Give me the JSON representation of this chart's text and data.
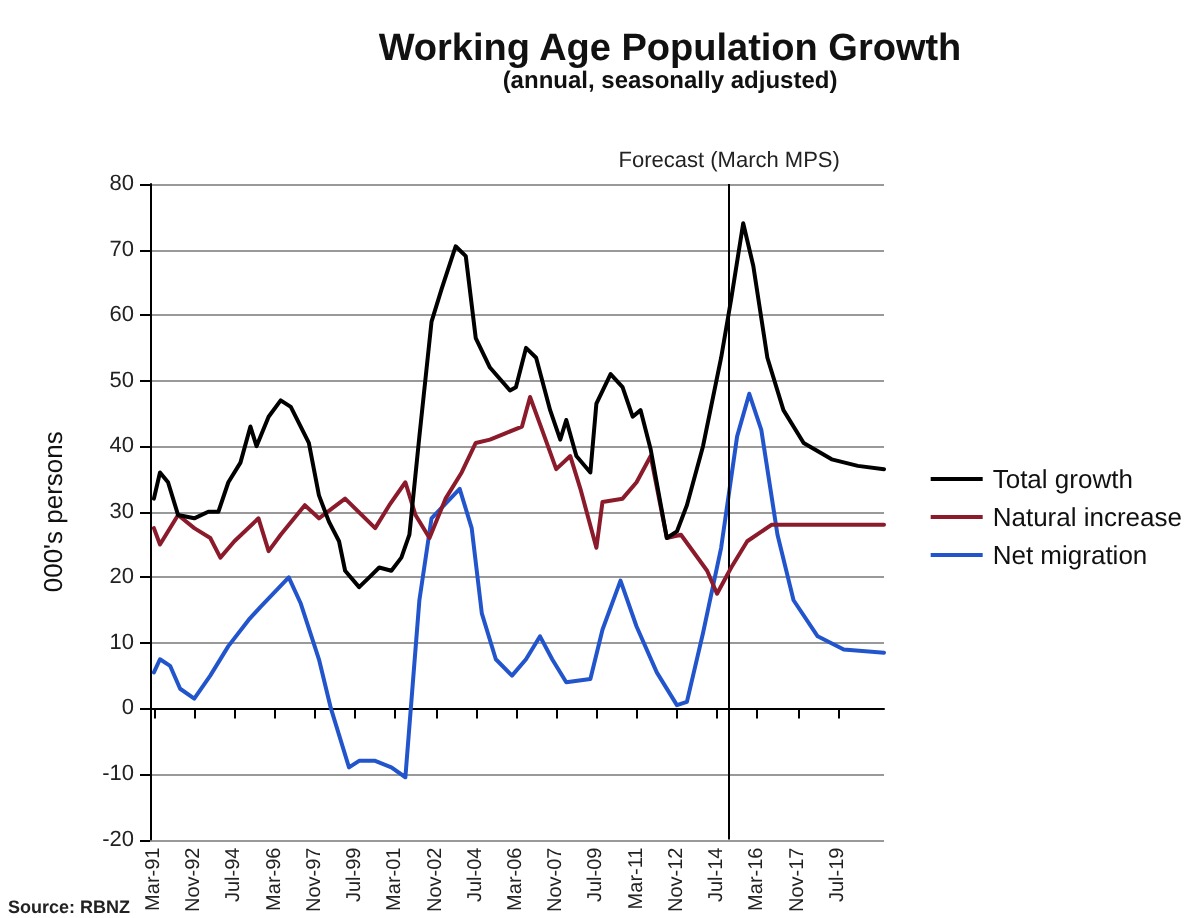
{
  "chart_data": {
    "type": "line",
    "title": "Working Age Population Growth",
    "subtitle": "(annual, seasonally adjusted)",
    "ylabel": "000's persons",
    "annotations": [
      "Source: RBNZ"
    ],
    "xlim": [
      "1991-01",
      "2021-06"
    ],
    "xticks": [
      {
        "value": "1991-03",
        "label": "Mar-91"
      },
      {
        "value": "1992-11",
        "label": "Nov-92"
      },
      {
        "value": "1994-07",
        "label": "Jul-94"
      },
      {
        "value": "1996-03",
        "label": "Mar-96"
      },
      {
        "value": "1997-11",
        "label": "Nov-97"
      },
      {
        "value": "1999-07",
        "label": "Jul-99"
      },
      {
        "value": "2001-03",
        "label": "Mar-01"
      },
      {
        "value": "2002-11",
        "label": "Nov-02"
      },
      {
        "value": "2004-07",
        "label": "Jul-04"
      },
      {
        "value": "2006-03",
        "label": "Mar-06"
      },
      {
        "value": "2007-11",
        "label": "Nov-07"
      },
      {
        "value": "2009-07",
        "label": "Jul-09"
      },
      {
        "value": "2011-03",
        "label": "Mar-11"
      },
      {
        "value": "2012-11",
        "label": "Nov-12"
      },
      {
        "value": "2014-07",
        "label": "Jul-14"
      },
      {
        "value": "2016-03",
        "label": "Mar-16"
      },
      {
        "value": "2017-11",
        "label": "Nov-17"
      },
      {
        "value": "2019-07",
        "label": "Jul-19"
      }
    ],
    "ylim": [
      -20,
      80
    ],
    "yticks": [
      -20,
      -10,
      0,
      10,
      20,
      30,
      40,
      50,
      60,
      70,
      80
    ],
    "grid": "y",
    "legend": "right",
    "marker": "none",
    "ref_lines": [
      {
        "axis": "x",
        "value": "2015-01",
        "label": "Forecast (March MPS)",
        "color": "#000000"
      }
    ],
    "series": [
      {
        "name": "Total growth",
        "color": "#000000",
        "x": [
          "1991-03",
          "1991-06",
          "1991-10",
          "1992-03",
          "1992-11",
          "1993-06",
          "1993-11",
          "1994-04",
          "1994-10",
          "1995-03",
          "1995-06",
          "1995-12",
          "1996-06",
          "1996-11",
          "1997-08",
          "1998-01",
          "1998-06",
          "1998-11",
          "1999-02",
          "1999-09",
          "2000-02",
          "2000-07",
          "2001-01",
          "2001-06",
          "2001-10",
          "2002-03",
          "2002-09",
          "2003-02",
          "2003-09",
          "2004-02",
          "2004-07",
          "2005-02",
          "2005-12",
          "2006-03",
          "2006-08",
          "2007-01",
          "2007-08",
          "2008-01",
          "2008-04",
          "2008-09",
          "2009-04",
          "2009-07",
          "2010-02",
          "2010-08",
          "2011-01",
          "2011-05",
          "2011-10",
          "2012-06",
          "2012-11",
          "2013-04",
          "2013-12",
          "2014-09",
          "2015-02",
          "2015-08",
          "2016-01",
          "2016-08",
          "2017-04",
          "2018-02",
          "2019-04",
          "2020-05",
          "2021-06"
        ],
        "values": [
          32,
          36,
          34.5,
          29.5,
          29,
          30,
          30,
          34.5,
          37.5,
          43,
          40,
          44.5,
          47,
          46,
          40.5,
          32.5,
          28.5,
          25.5,
          21,
          18.5,
          20,
          21.5,
          21,
          23,
          26.5,
          41.5,
          59,
          64,
          70.5,
          69,
          56.5,
          52,
          48.5,
          49,
          55,
          53.5,
          45.5,
          41,
          44,
          38.5,
          36,
          46.5,
          51,
          49,
          44.5,
          45.5,
          39.5,
          26,
          27,
          31,
          40,
          53.5,
          62.5,
          74,
          67.5,
          53.5,
          45.5,
          40.5,
          38,
          37,
          36.5
        ]
      },
      {
        "name": "Natural increase",
        "color": "#8b1a2b",
        "x": [
          "1991-03",
          "1991-06",
          "1992-03",
          "1992-11",
          "1993-07",
          "1993-12",
          "1994-07",
          "1995-07",
          "1995-12",
          "1996-06",
          "1997-06",
          "1998-01",
          "1999-02",
          "2000-05",
          "2000-12",
          "2001-08",
          "2002-01",
          "2002-08",
          "2003-04",
          "2003-12",
          "2004-07",
          "2005-02",
          "2005-10",
          "2006-06",
          "2006-10",
          "2007-04",
          "2007-11",
          "2008-06",
          "2008-11",
          "2009-07",
          "2009-10",
          "2010-08",
          "2011-03",
          "2011-10",
          "2012-06",
          "2013-01",
          "2014-02",
          "2014-07",
          "2015-02",
          "2015-10",
          "2016-10",
          "2021-06"
        ],
        "values": [
          27.5,
          25,
          29.5,
          27.5,
          26,
          23,
          25.5,
          29,
          24,
          26.5,
          31,
          29,
          32,
          27.5,
          31,
          34.5,
          29.5,
          26,
          32,
          36,
          40.5,
          41,
          42,
          43,
          47.5,
          42.5,
          36.5,
          38.5,
          33.5,
          24.5,
          31.5,
          32,
          34.5,
          38.5,
          26,
          26.5,
          21,
          17.5,
          21.5,
          25.5,
          28,
          28
        ]
      },
      {
        "name": "Net migration",
        "color": "#2255cc",
        "x": [
          "1991-03",
          "1991-06",
          "1991-11",
          "1992-04",
          "1992-11",
          "1993-07",
          "1994-04",
          "1995-02",
          "1995-08",
          "1996-10",
          "1997-04",
          "1998-01",
          "1998-07",
          "1999-04",
          "1999-09",
          "2000-05",
          "2001-01",
          "2001-08",
          "2002-03",
          "2002-09",
          "2003-11",
          "2004-05",
          "2004-10",
          "2005-05",
          "2006-01",
          "2006-08",
          "2007-03",
          "2007-09",
          "2008-04",
          "2009-04",
          "2009-10",
          "2010-07",
          "2011-03",
          "2012-01",
          "2012-11",
          "2013-04",
          "2013-12",
          "2014-09",
          "2015-05",
          "2015-11",
          "2016-05",
          "2017-01",
          "2017-09",
          "2018-09",
          "2019-10",
          "2021-06"
        ],
        "values": [
          5.5,
          7.5,
          6.5,
          3,
          1.5,
          5,
          9.5,
          13.5,
          15.5,
          20,
          16,
          7.5,
          0,
          -9,
          -8,
          -8,
          -9,
          -10.5,
          16.5,
          29,
          33.5,
          27.5,
          14.5,
          7.5,
          5,
          7.5,
          11,
          7.5,
          4,
          4.5,
          12,
          19.5,
          12.5,
          5.5,
          0.5,
          1,
          11.5,
          24.5,
          41.5,
          48,
          42.5,
          26.5,
          16.5,
          11,
          9,
          8.5
        ]
      }
    ]
  }
}
